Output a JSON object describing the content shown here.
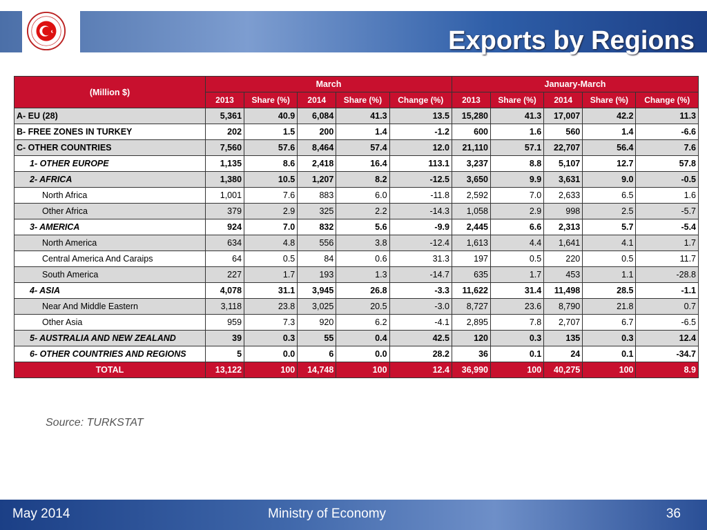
{
  "header": {
    "title": "Exports by Regions",
    "seal_text": "REPUBLIC OF TURKEY · MINISTRY OF ECONOMY"
  },
  "table": {
    "corner": "(Million $)",
    "group_headers": [
      "March",
      "January-March"
    ],
    "column_headers": [
      "2013",
      "Share (%)",
      "2014",
      "Share (%)",
      "Change (%)",
      "2013",
      "Share (%)",
      "2014",
      "Share (%)",
      "Change (%)"
    ],
    "rows": [
      {
        "label": "A- EU (28)",
        "style": "bold shaded",
        "cells": [
          "5,361",
          "40.9",
          "6,084",
          "41.3",
          "13.5",
          "15,280",
          "41.3",
          "17,007",
          "42.2",
          "11.3"
        ]
      },
      {
        "label": "B- FREE ZONES IN TURKEY",
        "style": "bold",
        "cells": [
          "202",
          "1.5",
          "200",
          "1.4",
          "-1.2",
          "600",
          "1.6",
          "560",
          "1.4",
          "-6.6"
        ]
      },
      {
        "label": "C- OTHER COUNTRIES",
        "style": "bold shaded",
        "cells": [
          "7,560",
          "57.6",
          "8,464",
          "57.4",
          "12.0",
          "21,110",
          "57.1",
          "22,707",
          "56.4",
          "7.6"
        ]
      },
      {
        "label": "1- OTHER EUROPE",
        "style": "bold italic indent1",
        "cells": [
          "1,135",
          "8.6",
          "2,418",
          "16.4",
          "113.1",
          "3,237",
          "8.8",
          "5,107",
          "12.7",
          "57.8"
        ]
      },
      {
        "label": "2- AFRICA",
        "style": "bold italic shaded indent1",
        "cells": [
          "1,380",
          "10.5",
          "1,207",
          "8.2",
          "-12.5",
          "3,650",
          "9.9",
          "3,631",
          "9.0",
          "-0.5"
        ]
      },
      {
        "label": "North Africa",
        "style": "indent2",
        "cells": [
          "1,001",
          "7.6",
          "883",
          "6.0",
          "-11.8",
          "2,592",
          "7.0",
          "2,633",
          "6.5",
          "1.6"
        ]
      },
      {
        "label": "Other Africa",
        "style": "shaded indent2",
        "cells": [
          "379",
          "2.9",
          "325",
          "2.2",
          "-14.3",
          "1,058",
          "2.9",
          "998",
          "2.5",
          "-5.7"
        ]
      },
      {
        "label": "3- AMERICA",
        "style": "bold italic indent1",
        "cells": [
          "924",
          "7.0",
          "832",
          "5.6",
          "-9.9",
          "2,445",
          "6.6",
          "2,313",
          "5.7",
          "-5.4"
        ]
      },
      {
        "label": "North America",
        "style": "shaded indent2",
        "cells": [
          "634",
          "4.8",
          "556",
          "3.8",
          "-12.4",
          "1,613",
          "4.4",
          "1,641",
          "4.1",
          "1.7"
        ]
      },
      {
        "label": "Central America And Caraips",
        "style": "indent2",
        "cells": [
          "64",
          "0.5",
          "84",
          "0.6",
          "31.3",
          "197",
          "0.5",
          "220",
          "0.5",
          "11.7"
        ]
      },
      {
        "label": "South America",
        "style": "shaded indent2",
        "cells": [
          "227",
          "1.7",
          "193",
          "1.3",
          "-14.7",
          "635",
          "1.7",
          "453",
          "1.1",
          "-28.8"
        ]
      },
      {
        "label": "4- ASIA",
        "style": "bold italic indent1",
        "cells": [
          "4,078",
          "31.1",
          "3,945",
          "26.8",
          "-3.3",
          "11,622",
          "31.4",
          "11,498",
          "28.5",
          "-1.1"
        ]
      },
      {
        "label": "Near And Middle Eastern",
        "style": "shaded indent2",
        "cells": [
          "3,118",
          "23.8",
          "3,025",
          "20.5",
          "-3.0",
          "8,727",
          "23.6",
          "8,790",
          "21.8",
          "0.7"
        ]
      },
      {
        "label": "Other Asia",
        "style": "indent2",
        "cells": [
          "959",
          "7.3",
          "920",
          "6.2",
          "-4.1",
          "2,895",
          "7.8",
          "2,707",
          "6.7",
          "-6.5"
        ]
      },
      {
        "label": "5- AUSTRALIA AND NEW ZEALAND",
        "style": "bold italic shaded indent1",
        "cells": [
          "39",
          "0.3",
          "55",
          "0.4",
          "42.5",
          "120",
          "0.3",
          "135",
          "0.3",
          "12.4"
        ]
      },
      {
        "label": "6- OTHER COUNTRIES AND REGIONS",
        "style": "bold italic indent1",
        "cells": [
          "5",
          "0.0",
          "6",
          "0.0",
          "28.2",
          "36",
          "0.1",
          "24",
          "0.1",
          "-34.7"
        ]
      }
    ],
    "total": {
      "label": "TOTAL",
      "cells": [
        "13,122",
        "100",
        "14,748",
        "100",
        "12.4",
        "36,990",
        "100",
        "40,275",
        "100",
        "8.9"
      ]
    }
  },
  "source": "Source: TURKSTAT",
  "footer": {
    "date": "May 2014",
    "org": "Ministry of Economy",
    "page": "36"
  },
  "colors": {
    "header_red": "#c8102e",
    "shaded_row": "#d9d9d9",
    "banner_blue": "#2e5ea8"
  }
}
